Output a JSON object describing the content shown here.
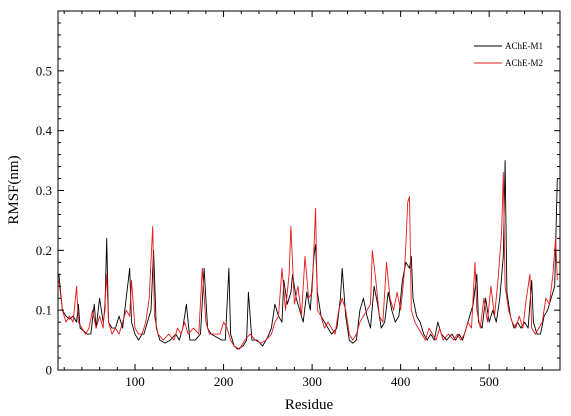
{
  "chart_data": {
    "type": "line",
    "title": "",
    "xlabel": "Residue",
    "ylabel": "RMSF(nm)",
    "xlim": [
      13,
      580
    ],
    "ylim": [
      0,
      0.6
    ],
    "x_ticks": [
      100,
      200,
      300,
      400,
      500
    ],
    "x_minor_step": 20,
    "y_ticks": [
      0,
      0.1,
      0.2,
      0.3,
      0.4,
      0.5
    ],
    "y_minor_step": 0.02,
    "grid": false,
    "legend_position": "top-right",
    "series": [
      {
        "name": "AChE-M1",
        "color": "#000000",
        "points": [
          [
            14,
            0.16
          ],
          [
            18,
            0.1
          ],
          [
            22,
            0.09
          ],
          [
            26,
            0.085
          ],
          [
            30,
            0.09
          ],
          [
            34,
            0.08
          ],
          [
            36,
            0.11
          ],
          [
            38,
            0.07
          ],
          [
            42,
            0.065
          ],
          [
            46,
            0.06
          ],
          [
            50,
            0.06
          ],
          [
            54,
            0.11
          ],
          [
            56,
            0.07
          ],
          [
            60,
            0.12
          ],
          [
            64,
            0.08
          ],
          [
            66,
            0.1
          ],
          [
            68,
            0.22
          ],
          [
            70,
            0.08
          ],
          [
            74,
            0.07
          ],
          [
            78,
            0.07
          ],
          [
            82,
            0.09
          ],
          [
            86,
            0.07
          ],
          [
            90,
            0.12
          ],
          [
            94,
            0.17
          ],
          [
            96,
            0.08
          ],
          [
            100,
            0.06
          ],
          [
            104,
            0.05
          ],
          [
            108,
            0.06
          ],
          [
            110,
            0.06
          ],
          [
            114,
            0.08
          ],
          [
            118,
            0.1
          ],
          [
            121,
            0.2
          ],
          [
            124,
            0.07
          ],
          [
            128,
            0.05
          ],
          [
            134,
            0.045
          ],
          [
            140,
            0.05
          ],
          [
            146,
            0.06
          ],
          [
            150,
            0.05
          ],
          [
            154,
            0.07
          ],
          [
            158,
            0.11
          ],
          [
            162,
            0.05
          ],
          [
            168,
            0.05
          ],
          [
            174,
            0.06
          ],
          [
            178,
            0.17
          ],
          [
            182,
            0.07
          ],
          [
            186,
            0.06
          ],
          [
            192,
            0.055
          ],
          [
            198,
            0.05
          ],
          [
            202,
            0.05
          ],
          [
            206,
            0.17
          ],
          [
            208,
            0.06
          ],
          [
            212,
            0.04
          ],
          [
            216,
            0.035
          ],
          [
            222,
            0.04
          ],
          [
            226,
            0.05
          ],
          [
            228,
            0.13
          ],
          [
            232,
            0.05
          ],
          [
            238,
            0.05
          ],
          [
            244,
            0.04
          ],
          [
            250,
            0.055
          ],
          [
            254,
            0.07
          ],
          [
            258,
            0.11
          ],
          [
            262,
            0.09
          ],
          [
            266,
            0.08
          ],
          [
            268,
            0.15
          ],
          [
            272,
            0.11
          ],
          [
            276,
            0.13
          ],
          [
            278,
            0.16
          ],
          [
            282,
            0.12
          ],
          [
            286,
            0.1
          ],
          [
            290,
            0.08
          ],
          [
            294,
            0.13
          ],
          [
            298,
            0.1
          ],
          [
            302,
            0.19
          ],
          [
            304,
            0.21
          ],
          [
            306,
            0.13
          ],
          [
            310,
            0.09
          ],
          [
            314,
            0.08
          ],
          [
            318,
            0.07
          ],
          [
            322,
            0.06
          ],
          [
            328,
            0.07
          ],
          [
            332,
            0.12
          ],
          [
            334,
            0.17
          ],
          [
            338,
            0.09
          ],
          [
            342,
            0.05
          ],
          [
            346,
            0.045
          ],
          [
            350,
            0.05
          ],
          [
            354,
            0.1
          ],
          [
            358,
            0.12
          ],
          [
            362,
            0.09
          ],
          [
            366,
            0.07
          ],
          [
            370,
            0.14
          ],
          [
            374,
            0.11
          ],
          [
            378,
            0.07
          ],
          [
            382,
            0.08
          ],
          [
            386,
            0.13
          ],
          [
            390,
            0.1
          ],
          [
            394,
            0.08
          ],
          [
            398,
            0.09
          ],
          [
            402,
            0.15
          ],
          [
            406,
            0.18
          ],
          [
            410,
            0.17
          ],
          [
            412,
            0.19
          ],
          [
            414,
            0.12
          ],
          [
            418,
            0.09
          ],
          [
            422,
            0.08
          ],
          [
            426,
            0.06
          ],
          [
            430,
            0.05
          ],
          [
            434,
            0.06
          ],
          [
            438,
            0.05
          ],
          [
            442,
            0.08
          ],
          [
            446,
            0.06
          ],
          [
            452,
            0.05
          ],
          [
            458,
            0.06
          ],
          [
            462,
            0.05
          ],
          [
            466,
            0.06
          ],
          [
            470,
            0.05
          ],
          [
            474,
            0.07
          ],
          [
            478,
            0.09
          ],
          [
            482,
            0.11
          ],
          [
            486,
            0.16
          ],
          [
            488,
            0.08
          ],
          [
            492,
            0.07
          ],
          [
            496,
            0.12
          ],
          [
            500,
            0.08
          ],
          [
            504,
            0.1
          ],
          [
            508,
            0.08
          ],
          [
            512,
            0.12
          ],
          [
            516,
            0.19
          ],
          [
            518,
            0.35
          ],
          [
            520,
            0.13
          ],
          [
            524,
            0.09
          ],
          [
            528,
            0.07
          ],
          [
            532,
            0.08
          ],
          [
            536,
            0.07
          ],
          [
            540,
            0.08
          ],
          [
            544,
            0.07
          ],
          [
            548,
            0.15
          ],
          [
            550,
            0.08
          ],
          [
            554,
            0.06
          ],
          [
            558,
            0.06
          ],
          [
            562,
            0.09
          ],
          [
            566,
            0.1
          ],
          [
            570,
            0.12
          ],
          [
            574,
            0.14
          ],
          [
            577,
            0.32
          ]
        ]
      },
      {
        "name": "AChE-M2",
        "color": "#e8191c",
        "points": [
          [
            14,
            0.15
          ],
          [
            18,
            0.1
          ],
          [
            22,
            0.08
          ],
          [
            26,
            0.09
          ],
          [
            30,
            0.08
          ],
          [
            34,
            0.14
          ],
          [
            36,
            0.08
          ],
          [
            40,
            0.07
          ],
          [
            44,
            0.06
          ],
          [
            48,
            0.07
          ],
          [
            52,
            0.1
          ],
          [
            56,
            0.07
          ],
          [
            60,
            0.09
          ],
          [
            64,
            0.07
          ],
          [
            68,
            0.16
          ],
          [
            70,
            0.08
          ],
          [
            74,
            0.06
          ],
          [
            78,
            0.07
          ],
          [
            82,
            0.06
          ],
          [
            86,
            0.08
          ],
          [
            90,
            0.1
          ],
          [
            94,
            0.09
          ],
          [
            96,
            0.15
          ],
          [
            100,
            0.07
          ],
          [
            104,
            0.06
          ],
          [
            108,
            0.06
          ],
          [
            112,
            0.08
          ],
          [
            116,
            0.12
          ],
          [
            120,
            0.24
          ],
          [
            122,
            0.09
          ],
          [
            126,
            0.06
          ],
          [
            132,
            0.05
          ],
          [
            138,
            0.06
          ],
          [
            144,
            0.05
          ],
          [
            148,
            0.07
          ],
          [
            152,
            0.06
          ],
          [
            156,
            0.08
          ],
          [
            160,
            0.06
          ],
          [
            166,
            0.07
          ],
          [
            172,
            0.06
          ],
          [
            176,
            0.17
          ],
          [
            180,
            0.08
          ],
          [
            184,
            0.06
          ],
          [
            190,
            0.06
          ],
          [
            196,
            0.06
          ],
          [
            200,
            0.08
          ],
          [
            204,
            0.07
          ],
          [
            208,
            0.05
          ],
          [
            212,
            0.04
          ],
          [
            218,
            0.035
          ],
          [
            224,
            0.05
          ],
          [
            230,
            0.06
          ],
          [
            236,
            0.05
          ],
          [
            242,
            0.045
          ],
          [
            248,
            0.05
          ],
          [
            254,
            0.06
          ],
          [
            258,
            0.08
          ],
          [
            262,
            0.09
          ],
          [
            266,
            0.17
          ],
          [
            270,
            0.1
          ],
          [
            274,
            0.16
          ],
          [
            276,
            0.24
          ],
          [
            280,
            0.11
          ],
          [
            284,
            0.14
          ],
          [
            288,
            0.09
          ],
          [
            292,
            0.19
          ],
          [
            296,
            0.12
          ],
          [
            300,
            0.13
          ],
          [
            304,
            0.27
          ],
          [
            306,
            0.1
          ],
          [
            310,
            0.09
          ],
          [
            314,
            0.07
          ],
          [
            318,
            0.08
          ],
          [
            322,
            0.07
          ],
          [
            326,
            0.06
          ],
          [
            330,
            0.1
          ],
          [
            334,
            0.12
          ],
          [
            338,
            0.1
          ],
          [
            342,
            0.06
          ],
          [
            346,
            0.05
          ],
          [
            350,
            0.06
          ],
          [
            354,
            0.08
          ],
          [
            358,
            0.09
          ],
          [
            362,
            0.1
          ],
          [
            366,
            0.11
          ],
          [
            368,
            0.2
          ],
          [
            372,
            0.15
          ],
          [
            376,
            0.09
          ],
          [
            380,
            0.08
          ],
          [
            384,
            0.18
          ],
          [
            388,
            0.12
          ],
          [
            392,
            0.1
          ],
          [
            396,
            0.13
          ],
          [
            400,
            0.1
          ],
          [
            404,
            0.16
          ],
          [
            406,
            0.21
          ],
          [
            408,
            0.28
          ],
          [
            410,
            0.29
          ],
          [
            412,
            0.1
          ],
          [
            416,
            0.08
          ],
          [
            420,
            0.07
          ],
          [
            424,
            0.06
          ],
          [
            428,
            0.05
          ],
          [
            432,
            0.07
          ],
          [
            436,
            0.06
          ],
          [
            440,
            0.05
          ],
          [
            444,
            0.07
          ],
          [
            448,
            0.05
          ],
          [
            454,
            0.06
          ],
          [
            460,
            0.05
          ],
          [
            464,
            0.06
          ],
          [
            468,
            0.05
          ],
          [
            472,
            0.06
          ],
          [
            476,
            0.08
          ],
          [
            480,
            0.07
          ],
          [
            484,
            0.18
          ],
          [
            486,
            0.1
          ],
          [
            490,
            0.07
          ],
          [
            494,
            0.12
          ],
          [
            498,
            0.08
          ],
          [
            502,
            0.14
          ],
          [
            506,
            0.09
          ],
          [
            510,
            0.15
          ],
          [
            514,
            0.23
          ],
          [
            516,
            0.33
          ],
          [
            518,
            0.14
          ],
          [
            522,
            0.1
          ],
          [
            526,
            0.08
          ],
          [
            530,
            0.07
          ],
          [
            534,
            0.09
          ],
          [
            538,
            0.07
          ],
          [
            542,
            0.12
          ],
          [
            546,
            0.16
          ],
          [
            548,
            0.07
          ],
          [
            552,
            0.06
          ],
          [
            556,
            0.07
          ],
          [
            560,
            0.08
          ],
          [
            564,
            0.12
          ],
          [
            568,
            0.11
          ],
          [
            572,
            0.16
          ],
          [
            575,
            0.22
          ],
          [
            577,
            0.15
          ]
        ]
      }
    ]
  }
}
